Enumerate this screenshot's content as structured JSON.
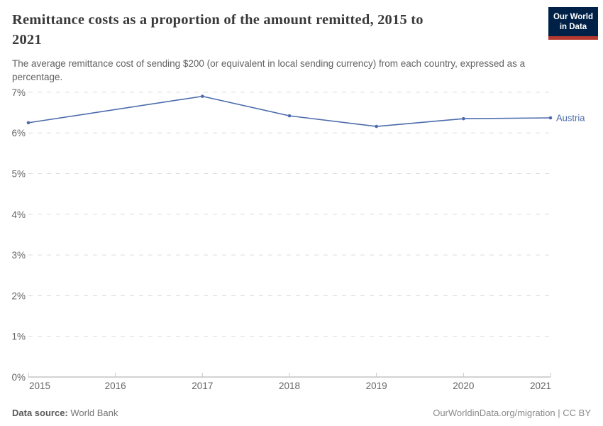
{
  "header": {
    "title_line1": "Remittance costs as a proportion of the amount remitted, 2015 to",
    "title_line2": "2021",
    "title_full": "Remittance costs as a proportion of the amount remitted, 2015 to 2021",
    "subtitle": "The average remittance cost of sending $200 (or equivalent in local sending currency) from each country, expressed as a percentage."
  },
  "logo": {
    "line1": "Our World",
    "line2": "in Data",
    "bg_color": "#002147",
    "accent_color": "#b5392f"
  },
  "footer": {
    "source_label": "Data source:",
    "source_value": "World Bank",
    "credit": "OurWorldinData.org/migration | CC BY"
  },
  "colors": {
    "line": "#4c6bac",
    "grid": "#dcdcdc",
    "axis": "#a5a5a5",
    "tick_text": "#666666"
  },
  "chart_data": {
    "type": "line",
    "title": "Remittance costs as a proportion of the amount remitted, 2015 to 2021",
    "subtitle": "The average remittance cost of sending $200 (or equivalent in local sending currency) from each country, expressed as a percentage.",
    "x": [
      2015,
      2016,
      2017,
      2018,
      2019,
      2020,
      2021
    ],
    "series": [
      {
        "name": "Austria",
        "values": [
          6.25,
          null,
          6.9,
          6.42,
          6.16,
          6.35,
          6.37
        ],
        "color": "#4c6bac",
        "note_missing": "2016 has no marker; line interpolates 2015-2017"
      }
    ],
    "unit": "%",
    "ylim": [
      0,
      7
    ],
    "yticks": [
      0,
      1,
      2,
      3,
      4,
      5,
      6,
      7
    ],
    "ytick_format": "{v}%",
    "grid": "horizontal-dashed",
    "legend_position": "end-of-line-label",
    "xlabel": "",
    "ylabel": ""
  }
}
